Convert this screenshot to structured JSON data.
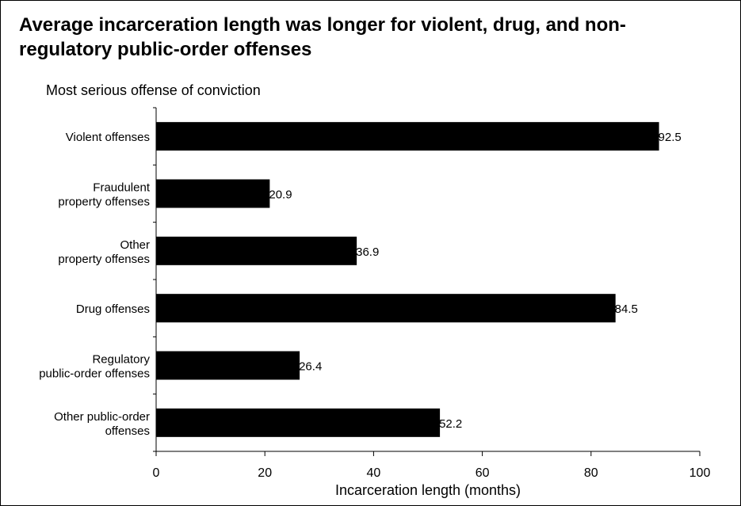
{
  "chart_data": {
    "type": "bar",
    "orientation": "horizontal",
    "title": "Average incarceration length was longer for violent, drug, and non-regulatory public-order offenses",
    "subtitle": "Most serious offense of conviction",
    "xlabel": "Incarceration length (months)",
    "ylabel": "",
    "xlim": [
      0,
      100
    ],
    "x_ticks": [
      0,
      20,
      40,
      60,
      80,
      100
    ],
    "grid": false,
    "legend": "none",
    "bar_color": "#000000",
    "categories": [
      [
        "Violent offenses"
      ],
      [
        "Fraudulent",
        "property offenses"
      ],
      [
        "Other",
        "property offenses"
      ],
      [
        "Drug offenses"
      ],
      [
        "Regulatory",
        "public-order offenses"
      ],
      [
        "Other public-order",
        "offenses"
      ]
    ],
    "values": [
      92.5,
      20.9,
      36.9,
      84.5,
      26.4,
      52.2
    ],
    "value_labels": [
      "92.5",
      "20.9",
      "36.9",
      "84.5",
      "26.4",
      "52.2"
    ]
  }
}
